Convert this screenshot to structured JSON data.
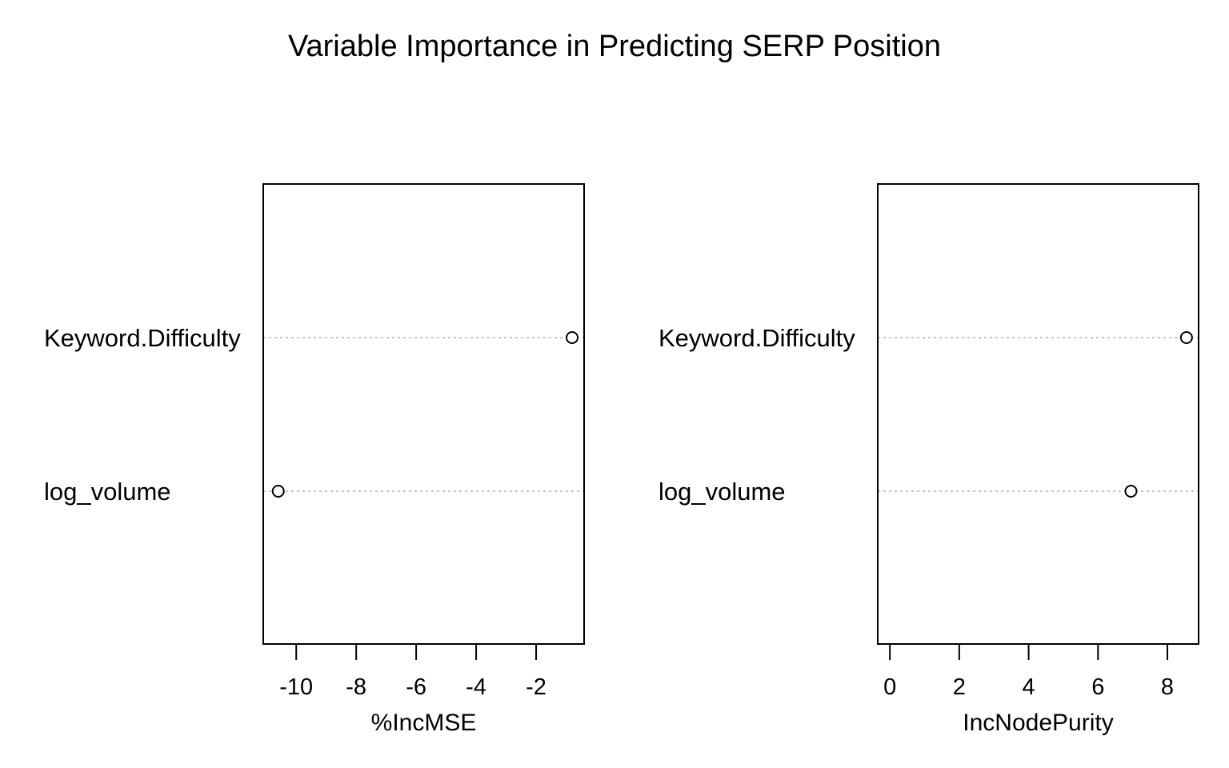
{
  "title": "Variable Importance in Predicting SERP Position",
  "chart_data": [
    {
      "type": "scatter",
      "subtype": "dotchart",
      "xlabel": "%IncMSE",
      "categories": [
        "Keyword.Difficulty",
        "log_volume"
      ],
      "values": [
        -0.8,
        -10.6
      ],
      "xlim": [
        -11.1,
        -0.4
      ],
      "xticks": [
        -10,
        -8,
        -6,
        -4,
        -2
      ],
      "xtick_labels": [
        "-10",
        "-8",
        "-6",
        "-4",
        "-2"
      ],
      "grid": "dotted horizontal lines per category",
      "marker": "open circle"
    },
    {
      "type": "scatter",
      "subtype": "dotchart",
      "xlabel": "IncNodePurity",
      "categories": [
        "Keyword.Difficulty",
        "log_volume"
      ],
      "values": [
        8.55,
        6.95
      ],
      "xlim": [
        -0.35,
        8.9
      ],
      "xticks": [
        0,
        2,
        4,
        6,
        8
      ],
      "xtick_labels": [
        "0",
        "2",
        "4",
        "6",
        "8"
      ],
      "grid": "dotted horizontal lines per category",
      "marker": "open circle"
    }
  ]
}
